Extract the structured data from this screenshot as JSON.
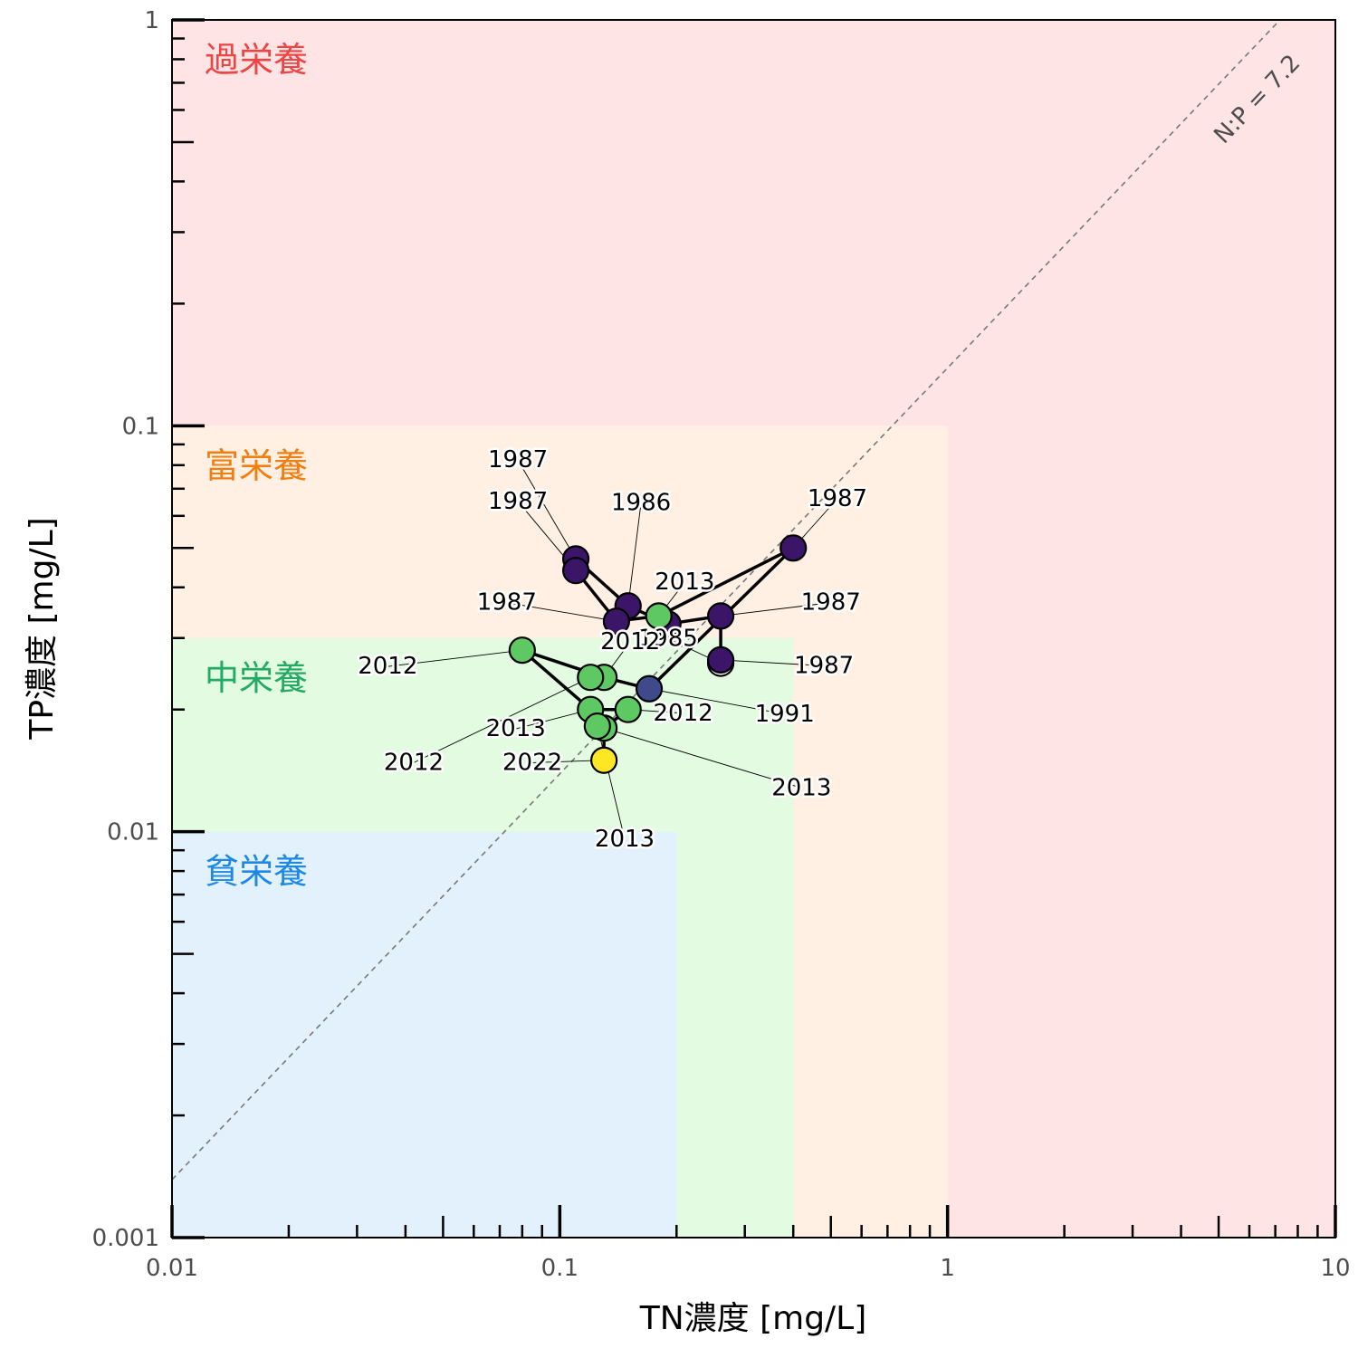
{
  "chart_data": {
    "type": "scatter",
    "xlabel": "TN濃度 [mg/L]",
    "ylabel": "TP濃度 [mg/L]",
    "xscale": "log",
    "yscale": "log",
    "xlim": [
      0.01,
      10
    ],
    "ylim": [
      0.001,
      1
    ],
    "x_ticks": [
      {
        "value": 0.01,
        "label": "0.01"
      },
      {
        "value": 0.1,
        "label": "0.1"
      },
      {
        "value": 1,
        "label": "1"
      },
      {
        "value": 10,
        "label": "10"
      }
    ],
    "y_ticks": [
      {
        "value": 0.001,
        "label": "0.001"
      },
      {
        "value": 0.01,
        "label": "0.01"
      },
      {
        "value": 0.1,
        "label": "0.1"
      },
      {
        "value": 1,
        "label": "1"
      }
    ],
    "zones": [
      {
        "label": "過栄養",
        "tn_max": 10,
        "tp_max": 1,
        "fill": "#ffe4e6",
        "text_color": "#ee4444"
      },
      {
        "label": "富栄養",
        "tn_max": 1,
        "tp_max": 0.1,
        "fill": "#fff0e3",
        "text_color": "#f07e10"
      },
      {
        "label": "中栄養",
        "tn_max": 0.4,
        "tp_max": 0.03,
        "fill": "#e3fbe1",
        "text_color": "#22aa66"
      },
      {
        "label": "貧栄養",
        "tn_max": 0.2,
        "tp_max": 0.01,
        "fill": "#e3f1fc",
        "text_color": "#1e88e5"
      }
    ],
    "reference_line": {
      "label": "N:P = 7.2",
      "ratio": 7.2
    },
    "points": [
      {
        "year": "1985",
        "tn": 0.26,
        "tp": 0.026,
        "color": "#ffffff",
        "label_x": 0.19,
        "label_y": 0.0287
      },
      {
        "year": "1986",
        "tn": 0.15,
        "tp": 0.036,
        "color": "#3b1567",
        "label_x": 0.162,
        "label_y": 0.062
      },
      {
        "year": "1987",
        "tn": 0.11,
        "tp": 0.047,
        "color": "#3b1567",
        "label_x": 0.078,
        "label_y": 0.079
      },
      {
        "year": "1987",
        "tn": 0.11,
        "tp": 0.044,
        "color": "#3b1567",
        "label_x": 0.078,
        "label_y": 0.0625
      },
      {
        "year": "1987",
        "tn": 0.14,
        "tp": 0.033,
        "color": "#3b1567",
        "label_x": 0.073,
        "label_y": 0.0352
      },
      {
        "year": "1987",
        "tn": 0.19,
        "tp": 0.0325,
        "color": "#3b1567",
        "label_x": 0.0,
        "label_y": 0.0
      },
      {
        "year": "1987",
        "tn": 0.26,
        "tp": 0.034,
        "color": "#3b1567",
        "label_x": 0.5,
        "label_y": 0.0352
      },
      {
        "year": "1987",
        "tn": 0.4,
        "tp": 0.05,
        "color": "#3b1567",
        "label_x": 0.52,
        "label_y": 0.0635
      },
      {
        "year": "1987",
        "tn": 0.26,
        "tp": 0.0265,
        "color": "#3b1567",
        "label_x": 0.48,
        "label_y": 0.0246
      },
      {
        "year": "1991",
        "tn": 0.17,
        "tp": 0.0225,
        "color": "#3e4a89",
        "label_x": 0.38,
        "label_y": 0.0187
      },
      {
        "year": "2012",
        "tn": 0.08,
        "tp": 0.028,
        "color": "#5ec962",
        "label_x": 0.036,
        "label_y": 0.0245
      },
      {
        "year": "2012",
        "tn": 0.13,
        "tp": 0.024,
        "color": "#5ec962",
        "label_x": 0.152,
        "label_y": 0.0282
      },
      {
        "year": "2012",
        "tn": 0.15,
        "tp": 0.02,
        "color": "#5ec962",
        "label_x": 0.208,
        "label_y": 0.0188
      },
      {
        "year": "2012",
        "tn": 0.12,
        "tp": 0.024,
        "color": "#5ec962",
        "label_x": 0.042,
        "label_y": 0.0142
      },
      {
        "year": "2013",
        "tn": 0.18,
        "tp": 0.034,
        "color": "#5ec962",
        "label_x": 0.21,
        "label_y": 0.0395
      },
      {
        "year": "2013",
        "tn": 0.12,
        "tp": 0.02,
        "color": "#5ec962",
        "label_x": 0.077,
        "label_y": 0.0172
      },
      {
        "year": "2013",
        "tn": 0.13,
        "tp": 0.018,
        "color": "#5ec962",
        "label_x": 0.42,
        "label_y": 0.0123
      },
      {
        "year": "2013",
        "tn": 0.125,
        "tp": 0.0182,
        "color": "#5ec962",
        "label_x": 0.147,
        "label_y": 0.0092
      },
      {
        "year": "2022",
        "tn": 0.13,
        "tp": 0.015,
        "color": "#fde725",
        "label_x": 0.085,
        "label_y": 0.0142
      }
    ],
    "path_order": [
      0,
      8,
      6,
      5,
      1,
      2,
      3,
      4,
      14,
      7,
      9,
      11,
      10,
      15,
      12,
      16,
      18
    ]
  }
}
